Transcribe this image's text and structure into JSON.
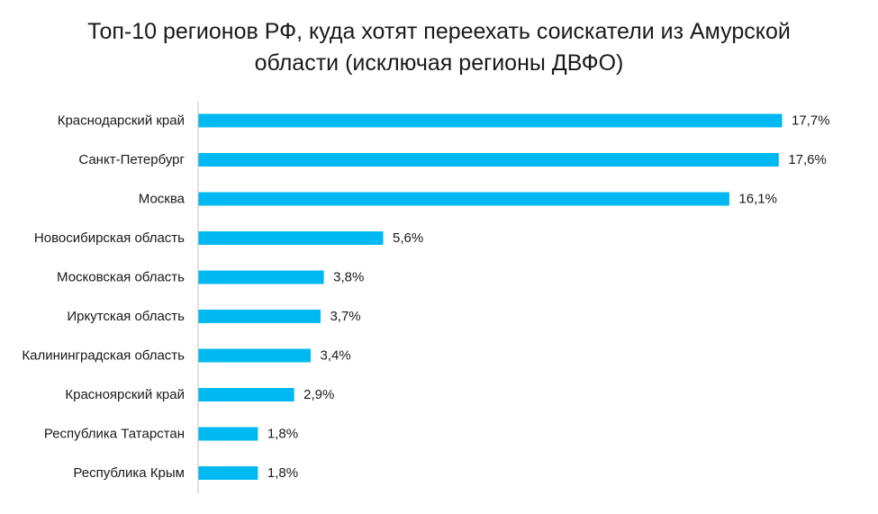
{
  "chart_data": {
    "type": "bar",
    "orientation": "horizontal",
    "title_lines": [
      "Топ-10 регионов РФ, куда хотят переехать соискатели из Амурской",
      "области (исключая регионы ДВФО)"
    ],
    "categories": [
      "Краснодарский край",
      "Санкт-Петербург",
      "Москва",
      "Новосибирская область",
      "Московская область",
      "Иркутская область",
      "Калининградская область",
      "Красноярский край",
      "Республика Татарстан",
      "Республика Крым"
    ],
    "values": [
      17.7,
      17.6,
      16.1,
      5.6,
      3.8,
      3.7,
      3.4,
      2.9,
      1.8,
      1.8
    ],
    "value_labels": [
      "17,7%",
      "17,6%",
      "16,1%",
      "5,6%",
      "3,8%",
      "3,7%",
      "3,4%",
      "2,9%",
      "1,8%",
      "1,8%"
    ],
    "xlim": [
      0,
      17.7
    ],
    "grid": false,
    "legend": "none",
    "bar_color": "#00b9f2",
    "axis_color": "#bfbfbf"
  }
}
